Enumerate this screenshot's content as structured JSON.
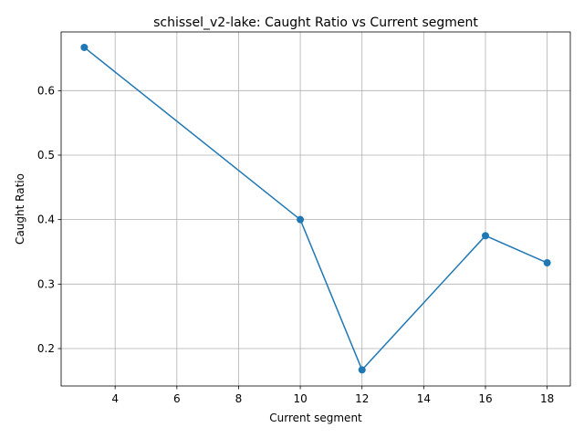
{
  "chart_data": {
    "type": "line",
    "title": "schissel_v2-lake: Caught Ratio vs Current segment",
    "xlabel": "Current segment",
    "ylabel": "Caught Ratio",
    "x_ticks": [
      4,
      6,
      8,
      10,
      12,
      14,
      16,
      18
    ],
    "y_ticks": [
      0.2,
      0.3,
      0.4,
      0.5,
      0.6
    ],
    "y_tick_labels": [
      "0.2",
      "0.3",
      "0.4",
      "0.5",
      "0.6"
    ],
    "xlim": [
      2.25,
      18.75
    ],
    "ylim": [
      0.142,
      0.691
    ],
    "grid": true,
    "series": [
      {
        "color": "#1f77b4",
        "marker": "circle",
        "x": [
          3,
          10,
          12,
          16,
          18
        ],
        "y": [
          0.667,
          0.4,
          0.167,
          0.375,
          0.333
        ]
      }
    ]
  }
}
